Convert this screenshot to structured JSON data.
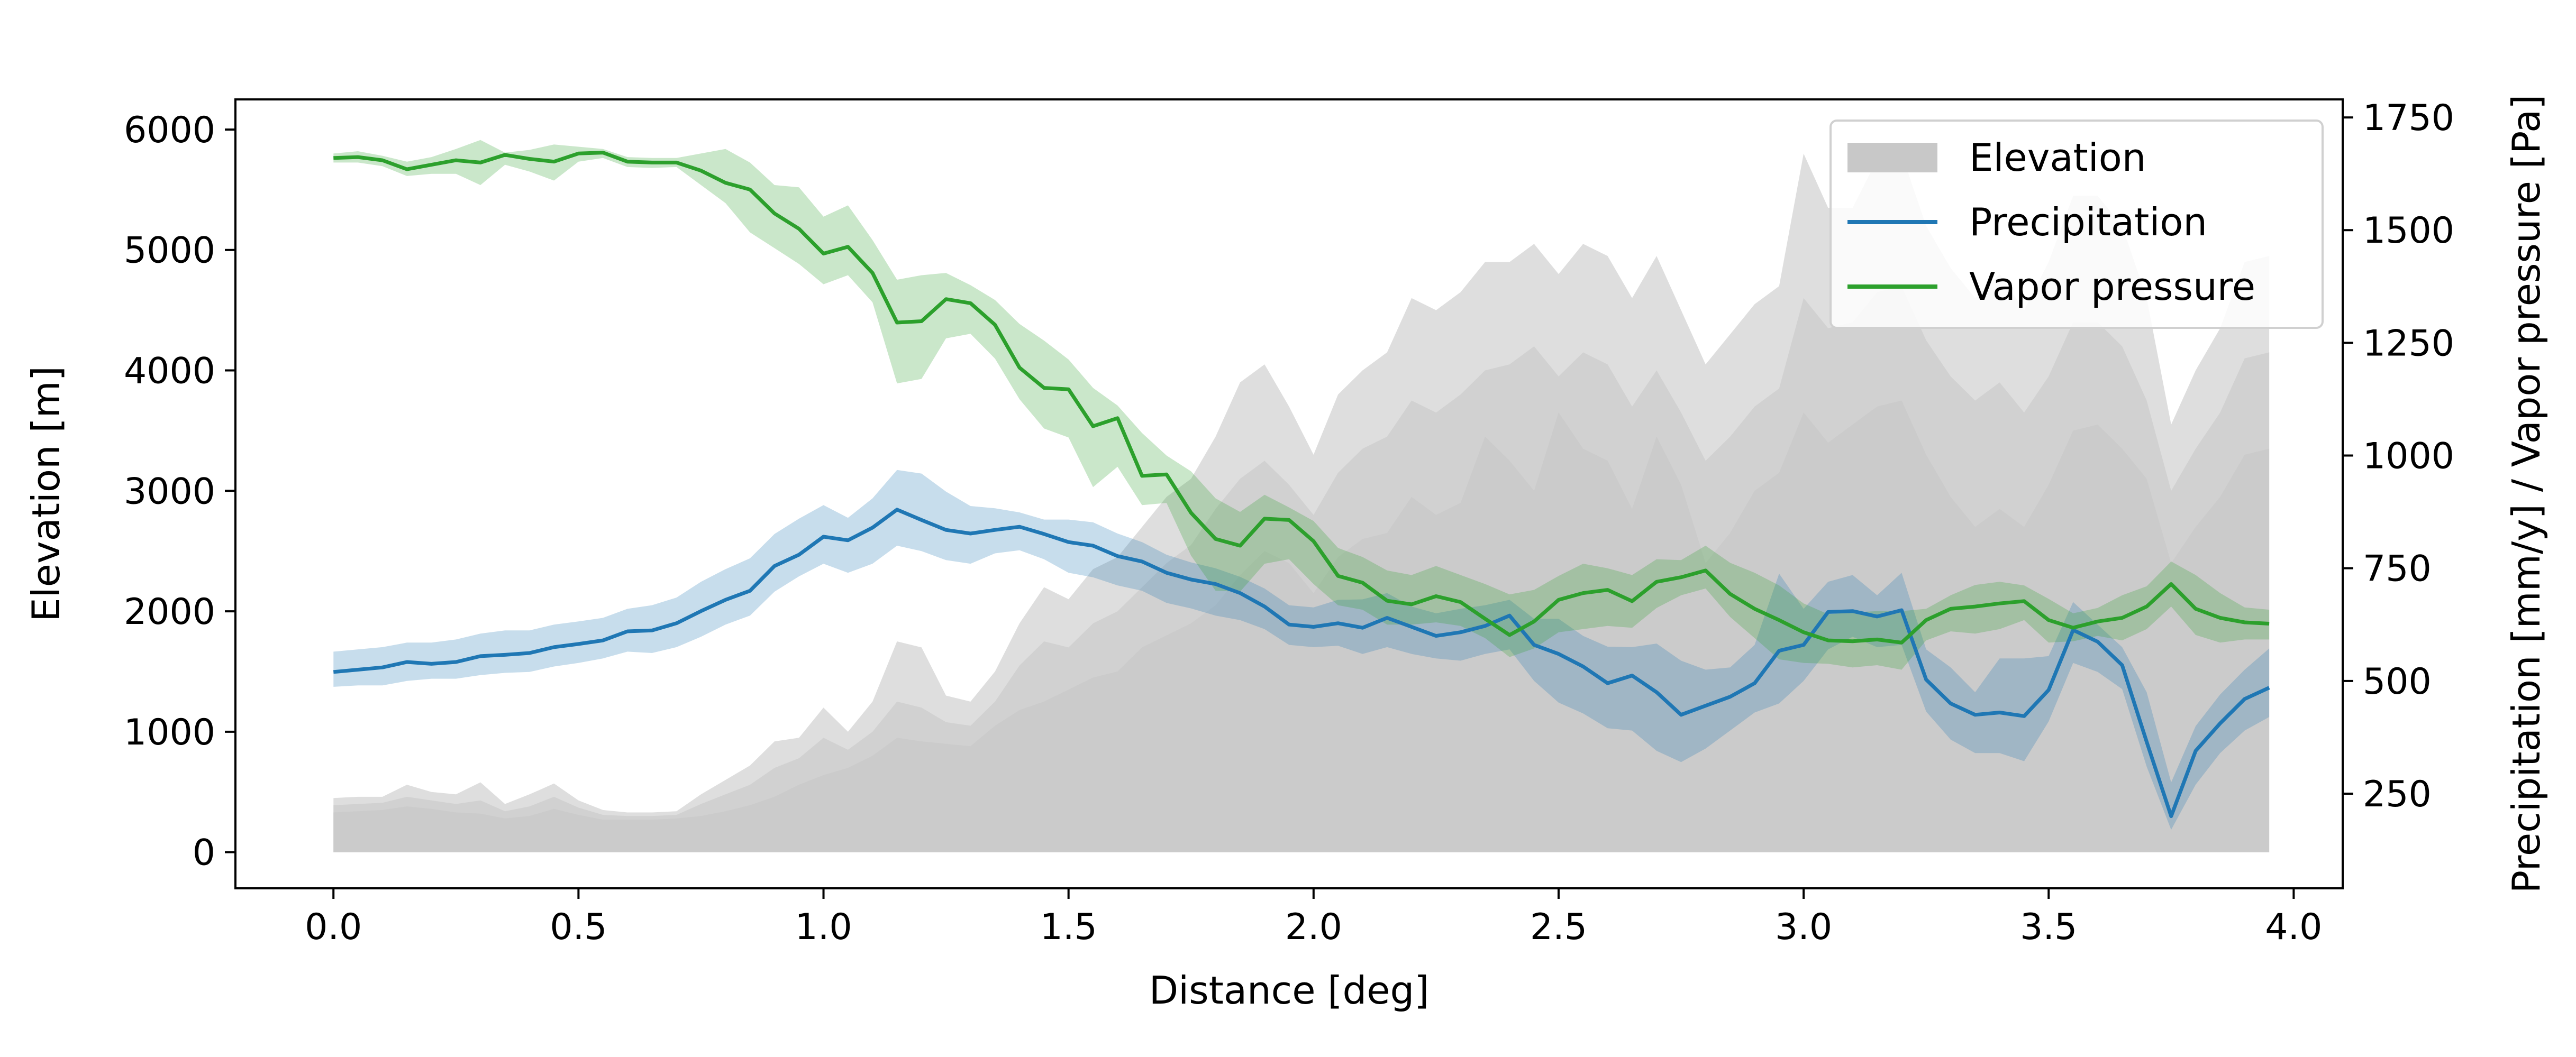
{
  "chart_data": {
    "type": "area",
    "xlabel": "Distance [deg]",
    "ylabel": "Elevation [m]",
    "y2label": "Precipitation [mm/y] / Vapor pressure [Pa]",
    "xlim": [
      -0.2,
      4.1
    ],
    "ylim": [
      -300,
      6250
    ],
    "y2lim": [
      40,
      1790
    ],
    "x_ticks": [
      "0.0",
      "0.5",
      "1.0",
      "1.5",
      "2.0",
      "2.5",
      "3.0",
      "3.5",
      "4.0"
    ],
    "y_ticks": [
      "0",
      "1000",
      "2000",
      "3000",
      "4000",
      "5000",
      "6000"
    ],
    "y2_ticks": [
      "250",
      "500",
      "750",
      "1000",
      "1250",
      "1500",
      "1750"
    ],
    "legend_position": "top-right",
    "legend": [
      {
        "label": "Elevation",
        "kind": "patch",
        "color": "#c8c8c8"
      },
      {
        "label": "Precipitation",
        "kind": "line",
        "color": "#1f77b4"
      },
      {
        "label": "Vapor pressure",
        "kind": "line",
        "color": "#2ca02c"
      }
    ],
    "x": [
      0.0,
      0.05,
      0.1,
      0.15,
      0.2,
      0.25,
      0.3,
      0.35,
      0.4,
      0.45,
      0.5,
      0.55,
      0.6,
      0.65,
      0.7,
      0.75,
      0.8,
      0.85,
      0.9,
      0.95,
      1.0,
      1.05,
      1.1,
      1.15,
      1.2,
      1.25,
      1.3,
      1.35,
      1.4,
      1.45,
      1.5,
      1.55,
      1.6,
      1.65,
      1.7,
      1.75,
      1.8,
      1.85,
      1.9,
      1.95,
      2.0,
      2.05,
      2.1,
      2.15,
      2.2,
      2.25,
      2.3,
      2.35,
      2.4,
      2.45,
      2.5,
      2.55,
      2.6,
      2.65,
      2.7,
      2.75,
      2.8,
      2.85,
      2.9,
      2.95,
      3.0,
      3.05,
      3.1,
      3.15,
      3.2,
      3.25,
      3.3,
      3.35,
      3.4,
      3.45,
      3.5,
      3.55,
      3.6,
      3.65,
      3.7,
      3.75,
      3.8,
      3.85,
      3.9,
      3.95
    ],
    "elevation": {
      "color": "#c8c8c8",
      "max": [
        450,
        460,
        460,
        560,
        500,
        480,
        580,
        400,
        480,
        570,
        430,
        350,
        330,
        330,
        340,
        480,
        600,
        720,
        920,
        950,
        1200,
        1000,
        1250,
        1750,
        1700,
        1300,
        1250,
        1500,
        1900,
        2200,
        2100,
        2350,
        2450,
        2700,
        2950,
        3100,
        3450,
        3900,
        4050,
        3700,
        3300,
        3800,
        4000,
        4150,
        4600,
        4500,
        4650,
        4900,
        4900,
        5050,
        4800,
        5050,
        4950,
        4600,
        4950,
        4500,
        4050,
        4300,
        4550,
        4700,
        5800,
        5350,
        5350,
        5750,
        5800,
        5200,
        4850,
        4600,
        4800,
        4500,
        4900,
        5450,
        5450,
        5200,
        4600,
        3550,
        4000,
        4350,
        4900,
        4950
      ],
      "mid": [
        390,
        400,
        410,
        460,
        430,
        400,
        430,
        340,
        380,
        460,
        370,
        310,
        300,
        300,
        310,
        400,
        480,
        560,
        700,
        780,
        950,
        850,
        1000,
        1250,
        1200,
        1080,
        1050,
        1250,
        1550,
        1750,
        1700,
        1900,
        2000,
        2200,
        2400,
        2550,
        2850,
        3100,
        3250,
        3050,
        2800,
        3150,
        3350,
        3450,
        3750,
        3650,
        3800,
        4000,
        4050,
        4200,
        3950,
        4150,
        4050,
        3700,
        4000,
        3650,
        3250,
        3450,
        3700,
        3850,
        4600,
        4350,
        4400,
        4650,
        4700,
        4250,
        3950,
        3750,
        3900,
        3650,
        3950,
        4400,
        4400,
        4200,
        3750,
        3000,
        3350,
        3650,
        4100,
        4150
      ],
      "min": [
        330,
        340,
        350,
        380,
        360,
        330,
        320,
        280,
        300,
        360,
        310,
        270,
        270,
        270,
        280,
        300,
        340,
        390,
        460,
        560,
        640,
        700,
        800,
        950,
        920,
        900,
        880,
        1050,
        1180,
        1250,
        1350,
        1450,
        1500,
        1700,
        1800,
        1900,
        2050,
        2300,
        2500,
        2400,
        2150,
        2450,
        2600,
        2650,
        2950,
        2800,
        2900,
        3450,
        3250,
        3000,
        3650,
        3350,
        3250,
        2850,
        3450,
        3050,
        2400,
        2650,
        3000,
        3150,
        3650,
        3400,
        3550,
        3700,
        3750,
        3300,
        2950,
        2700,
        2850,
        2700,
        3050,
        3500,
        3550,
        3350,
        3100,
        2400,
        2700,
        2950,
        3300,
        3350
      ]
    },
    "series": [
      {
        "name": "Precipitation",
        "color": "#1f77b4",
        "values": [
          520,
          525,
          530,
          542,
          538,
          542,
          555,
          558,
          562,
          575,
          582,
          590,
          610,
          612,
          628,
          655,
          680,
          700,
          755,
          780,
          820,
          812,
          840,
          880,
          857,
          835,
          827,
          835,
          842,
          826,
          808,
          800,
          777,
          765,
          740,
          725,
          715,
          695,
          665,
          625,
          620,
          628,
          618,
          640,
          620,
          600,
          608,
          622,
          645,
          580,
          560,
          532,
          495,
          512,
          475,
          425,
          445,
          465,
          495,
          567,
          580,
          653,
          655,
          643,
          657,
          503,
          450,
          425,
          430,
          422,
          480,
          613,
          587,
          535,
          365,
          200,
          345,
          406,
          460,
          485
        ],
        "upper": [
          565,
          570,
          575,
          585,
          585,
          592,
          605,
          612,
          612,
          625,
          632,
          640,
          660,
          668,
          685,
          720,
          748,
          772,
          826,
          860,
          890,
          862,
          905,
          968,
          960,
          920,
          888,
          883,
          874,
          858,
          858,
          852,
          827,
          808,
          780,
          763,
          750,
          731,
          705,
          668,
          663,
          680,
          681,
          695,
          665,
          650,
          660,
          668,
          680,
          638,
          638,
          600,
          576,
          575,
          583,
          545,
          525,
          530,
          580,
          738,
          660,
          720,
          735,
          690,
          740,
          570,
          530,
          475,
          550,
          550,
          555,
          675,
          625,
          575,
          475,
          275,
          400,
          470,
          525,
          572
        ],
        "lower": [
          487,
          490,
          490,
          500,
          505,
          505,
          513,
          518,
          520,
          532,
          540,
          550,
          565,
          562,
          575,
          598,
          625,
          645,
          698,
          732,
          760,
          740,
          760,
          800,
          788,
          768,
          760,
          783,
          790,
          770,
          740,
          730,
          712,
          700,
          673,
          661,
          645,
          635,
          615,
          580,
          575,
          578,
          560,
          575,
          560,
          550,
          545,
          560,
          570,
          500,
          452,
          428,
          395,
          390,
          345,
          320,
          350,
          390,
          430,
          450,
          500,
          570,
          598,
          575,
          580,
          432,
          370,
          340,
          340,
          322,
          410,
          540,
          520,
          482,
          310,
          170,
          270,
          340,
          390,
          420
        ]
      },
      {
        "name": "Vapor pressure",
        "color": "#2ca02c",
        "values": [
          1660,
          1662,
          1655,
          1635,
          1645,
          1655,
          1650,
          1667,
          1658,
          1652,
          1670,
          1672,
          1652,
          1650,
          1650,
          1632,
          1605,
          1590,
          1537,
          1503,
          1448,
          1463,
          1405,
          1295,
          1298,
          1347,
          1338,
          1290,
          1195,
          1150,
          1147,
          1065,
          1083,
          955,
          958,
          873,
          815,
          800,
          860,
          857,
          810,
          733,
          718,
          678,
          670,
          688,
          675,
          638,
          602,
          632,
          680,
          695,
          702,
          677,
          720,
          730,
          745,
          693,
          660,
          635,
          608,
          590,
          588,
          592,
          585,
          635,
          660,
          665,
          672,
          677,
          635,
          618,
          632,
          640,
          665,
          715,
          660,
          640,
          630,
          627
        ],
        "upper": [
          1670,
          1675,
          1665,
          1652,
          1662,
          1680,
          1700,
          1672,
          1678,
          1690,
          1685,
          1680,
          1662,
          1660,
          1660,
          1670,
          1680,
          1650,
          1600,
          1595,
          1530,
          1555,
          1478,
          1390,
          1400,
          1405,
          1378,
          1345,
          1292,
          1255,
          1213,
          1150,
          1111,
          1050,
          1000,
          965,
          905,
          875,
          913,
          885,
          855,
          795,
          775,
          745,
          735,
          755,
          735,
          715,
          692,
          702,
          733,
          760,
          750,
          735,
          770,
          768,
          800,
          762,
          740,
          712,
          672,
          648,
          652,
          655,
          655,
          660,
          690,
          713,
          720,
          712,
          682,
          650,
          662,
          690,
          710,
          765,
          735,
          695,
          663,
          658
        ],
        "lower": [
          1650,
          1650,
          1642,
          1620,
          1625,
          1625,
          1600,
          1645,
          1630,
          1610,
          1652,
          1660,
          1640,
          1638,
          1640,
          1600,
          1560,
          1495,
          1460,
          1425,
          1380,
          1400,
          1340,
          1160,
          1170,
          1260,
          1270,
          1215,
          1125,
          1060,
          1040,
          930,
          975,
          890,
          895,
          778,
          700,
          698,
          760,
          770,
          715,
          668,
          658,
          625,
          625,
          630,
          622,
          595,
          553,
          572,
          608,
          615,
          622,
          618,
          662,
          690,
          705,
          642,
          595,
          548,
          540,
          538,
          530,
          535,
          525,
          590,
          610,
          605,
          615,
          635,
          585,
          588,
          600,
          590,
          615,
          665,
          602,
          585,
          592,
          592
        ]
      }
    ]
  }
}
